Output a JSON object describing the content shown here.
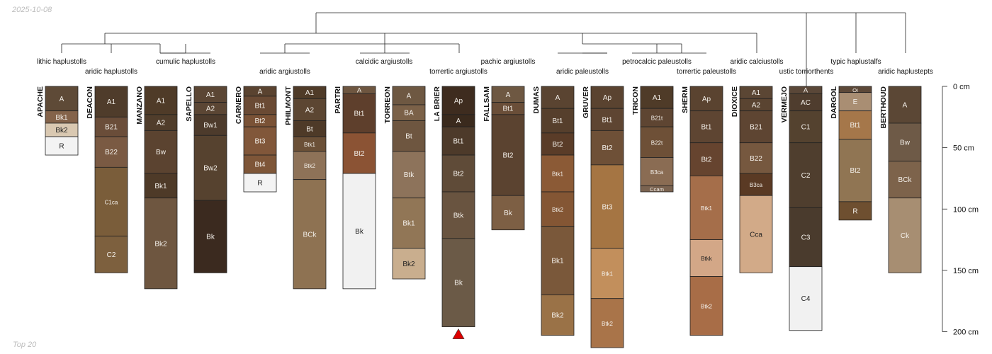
{
  "header": {
    "date": "2025-10-08"
  },
  "footer": {
    "caption": "Top 20"
  },
  "chart_data": {
    "type": "soil-profile-sketch",
    "title": "",
    "depth_axis": {
      "unit": "cm",
      "range": [
        0,
        200
      ],
      "ticks": [
        0,
        50,
        100,
        150,
        200
      ],
      "tick_labels": [
        "0 cm",
        "50 cm",
        "100 cm",
        "150 cm",
        "200 cm"
      ],
      "position": "right"
    },
    "profiles": [
      {
        "name": "APACHE",
        "horizons": [
          {
            "name": "A",
            "top": 0,
            "bottom": 20,
            "color": "#5e4a37"
          },
          {
            "name": "Bk1",
            "top": 20,
            "bottom": 30,
            "color": "#84634a"
          },
          {
            "name": "Bk2",
            "top": 30,
            "bottom": 41,
            "color": "#d9c8b1"
          },
          {
            "name": "R",
            "top": 41,
            "bottom": 56,
            "color": "#f3f3f3"
          }
        ]
      },
      {
        "name": "DEACON",
        "horizons": [
          {
            "name": "A1",
            "top": 0,
            "bottom": 25,
            "color": "#4f3c2b"
          },
          {
            "name": "B21",
            "top": 25,
            "bottom": 41,
            "color": "#6a4d39"
          },
          {
            "name": "B22",
            "top": 41,
            "bottom": 66,
            "color": "#7a5a43"
          },
          {
            "name": "C1ca",
            "top": 66,
            "bottom": 122,
            "color": "#7a5d3a"
          },
          {
            "name": "C2",
            "top": 122,
            "bottom": 152,
            "color": "#7d603e"
          }
        ]
      },
      {
        "name": "MANZANO",
        "horizons": [
          {
            "name": "A1",
            "top": 0,
            "bottom": 23,
            "color": "#4f3b28"
          },
          {
            "name": "A2",
            "top": 23,
            "bottom": 36,
            "color": "#503d2b"
          },
          {
            "name": "Bw",
            "top": 36,
            "bottom": 71,
            "color": "#5b4330"
          },
          {
            "name": "Bk1",
            "top": 71,
            "bottom": 91,
            "color": "#4e3a28"
          },
          {
            "name": "Bk2",
            "top": 91,
            "bottom": 165,
            "color": "#6e5640"
          }
        ]
      },
      {
        "name": "SAPELLO",
        "horizons": [
          {
            "name": "A1",
            "top": 0,
            "bottom": 13,
            "color": "#5b4634"
          },
          {
            "name": "A2",
            "top": 13,
            "bottom": 23,
            "color": "#5b4634"
          },
          {
            "name": "Bw1",
            "top": 23,
            "bottom": 40,
            "color": "#4d3b2c"
          },
          {
            "name": "Bw2",
            "top": 40,
            "bottom": 93,
            "color": "#56422f"
          },
          {
            "name": "Bk",
            "top": 93,
            "bottom": 152,
            "color": "#3b2a1f"
          }
        ]
      },
      {
        "name": "CARNERO",
        "horizons": [
          {
            "name": "A",
            "top": 0,
            "bottom": 8,
            "color": "#5a4330"
          },
          {
            "name": "Bt1",
            "top": 8,
            "bottom": 23,
            "color": "#6a4a34"
          },
          {
            "name": "Bt2",
            "top": 23,
            "bottom": 33,
            "color": "#7a5236"
          },
          {
            "name": "Bt3",
            "top": 33,
            "bottom": 56,
            "color": "#81573a"
          },
          {
            "name": "Bt4",
            "top": 56,
            "bottom": 71,
            "color": "#7e5638"
          },
          {
            "name": "R",
            "top": 71,
            "bottom": 86,
            "color": "#f3f3f3"
          }
        ]
      },
      {
        "name": "PHILMONT",
        "horizons": [
          {
            "name": "A1",
            "top": 0,
            "bottom": 10,
            "color": "#4f3b28"
          },
          {
            "name": "A2",
            "top": 10,
            "bottom": 28,
            "color": "#5c4632"
          },
          {
            "name": "Bt",
            "top": 28,
            "bottom": 41,
            "color": "#4e3a28"
          },
          {
            "name": "Btk1",
            "top": 41,
            "bottom": 53,
            "color": "#6b5037"
          },
          {
            "name": "Btk2",
            "top": 53,
            "bottom": 76,
            "color": "#8e7258"
          },
          {
            "name": "BCk",
            "top": 76,
            "bottom": 165,
            "color": "#8e7252"
          }
        ]
      },
      {
        "name": "PARTRI",
        "horizons": [
          {
            "name": "A",
            "top": 0,
            "bottom": 6,
            "color": "#6e5640"
          },
          {
            "name": "Bt1",
            "top": 6,
            "bottom": 38,
            "color": "#5e3f2c"
          },
          {
            "name": "Bt2",
            "top": 38,
            "bottom": 71,
            "color": "#8b5334"
          },
          {
            "name": "Bk",
            "top": 71,
            "bottom": 165,
            "color": "#f1f1f1"
          }
        ]
      },
      {
        "name": "TORREON",
        "horizons": [
          {
            "name": "A",
            "top": 0,
            "bottom": 15,
            "color": "#6e5842"
          },
          {
            "name": "BA",
            "top": 15,
            "bottom": 28,
            "color": "#7b6148"
          },
          {
            "name": "Bt",
            "top": 28,
            "bottom": 53,
            "color": "#6e5640"
          },
          {
            "name": "Btk",
            "top": 53,
            "bottom": 91,
            "color": "#8d735b"
          },
          {
            "name": "Bk1",
            "top": 91,
            "bottom": 132,
            "color": "#917656"
          },
          {
            "name": "Bk2",
            "top": 132,
            "bottom": 157,
            "color": "#c9ae8e"
          }
        ]
      },
      {
        "name": "LA BRIER",
        "horizons": [
          {
            "name": "Ap",
            "top": 0,
            "bottom": 23,
            "color": "#3e2c1f"
          },
          {
            "name": "A",
            "top": 23,
            "bottom": 33,
            "color": "#3a2a1d"
          },
          {
            "name": "Bt1",
            "top": 33,
            "bottom": 56,
            "color": "#4d3a2a"
          },
          {
            "name": "Bt2",
            "top": 56,
            "bottom": 86,
            "color": "#5f4b38"
          },
          {
            "name": "Btk",
            "top": 86,
            "bottom": 124,
            "color": "#695440"
          },
          {
            "name": "Bk",
            "top": 124,
            "bottom": 196,
            "color": "#6b5a47"
          }
        ]
      },
      {
        "name": "FALLSAM",
        "horizons": [
          {
            "name": "A",
            "top": 0,
            "bottom": 13,
            "color": "#6e5842"
          },
          {
            "name": "Bt1",
            "top": 13,
            "bottom": 23,
            "color": "#6a4e38"
          },
          {
            "name": "Bt2",
            "top": 23,
            "bottom": 89,
            "color": "#5b4330"
          },
          {
            "name": "Bk",
            "top": 89,
            "bottom": 117,
            "color": "#7d5f44"
          }
        ]
      },
      {
        "name": "DUMAS",
        "horizons": [
          {
            "name": "A",
            "top": 0,
            "bottom": 18,
            "color": "#5a4431"
          },
          {
            "name": "Bt1",
            "top": 18,
            "bottom": 38,
            "color": "#563f2c"
          },
          {
            "name": "Bt2",
            "top": 38,
            "bottom": 56,
            "color": "#5a3c28"
          },
          {
            "name": "Btk1",
            "top": 56,
            "bottom": 86,
            "color": "#8b5a36"
          },
          {
            "name": "Btk2",
            "top": 86,
            "bottom": 114,
            "color": "#845634"
          },
          {
            "name": "Bk1",
            "top": 114,
            "bottom": 170,
            "color": "#7a583a"
          },
          {
            "name": "Bk2",
            "top": 170,
            "bottom": 203,
            "color": "#9a7247"
          }
        ]
      },
      {
        "name": "GRUVER",
        "horizons": [
          {
            "name": "Ap",
            "top": 0,
            "bottom": 18,
            "color": "#5a4330"
          },
          {
            "name": "Bt1",
            "top": 18,
            "bottom": 36,
            "color": "#5e4532"
          },
          {
            "name": "Bt2",
            "top": 36,
            "bottom": 64,
            "color": "#6e5037"
          },
          {
            "name": "Bt3",
            "top": 64,
            "bottom": 132,
            "color": "#a57543"
          },
          {
            "name": "Btk1",
            "top": 132,
            "bottom": 173,
            "color": "#c28f5c"
          },
          {
            "name": "Btk2",
            "top": 173,
            "bottom": 213,
            "color": "#a97449"
          }
        ]
      },
      {
        "name": "TRICON",
        "horizons": [
          {
            "name": "A1",
            "top": 0,
            "bottom": 18,
            "color": "#4f3b28"
          },
          {
            "name": "B21t",
            "top": 18,
            "bottom": 33,
            "color": "#5e4532"
          },
          {
            "name": "B22t",
            "top": 33,
            "bottom": 58,
            "color": "#6e5037"
          },
          {
            "name": "B3ca",
            "top": 58,
            "bottom": 81,
            "color": "#8a6c53"
          },
          {
            "name": "Ccam",
            "top": 81,
            "bottom": 86,
            "color": "#7a6350"
          }
        ]
      },
      {
        "name": "SHERM",
        "horizons": [
          {
            "name": "Ap",
            "top": 0,
            "bottom": 20,
            "color": "#5a4330"
          },
          {
            "name": "Bt1",
            "top": 20,
            "bottom": 46,
            "color": "#5e4532"
          },
          {
            "name": "Bt2",
            "top": 46,
            "bottom": 73,
            "color": "#66442f"
          },
          {
            "name": "Btk1",
            "top": 73,
            "bottom": 125,
            "color": "#a56e4a"
          },
          {
            "name": "Btkk",
            "top": 125,
            "bottom": 155,
            "color": "#d3a787"
          },
          {
            "name": "Btk2",
            "top": 155,
            "bottom": 203,
            "color": "#a86d47"
          }
        ]
      },
      {
        "name": "DIOXICE",
        "horizons": [
          {
            "name": "A1",
            "top": 0,
            "bottom": 10,
            "color": "#5b4634"
          },
          {
            "name": "A2",
            "top": 10,
            "bottom": 20,
            "color": "#5a4431"
          },
          {
            "name": "B21",
            "top": 20,
            "bottom": 46,
            "color": "#5e4532"
          },
          {
            "name": "B22",
            "top": 46,
            "bottom": 71,
            "color": "#76583f"
          },
          {
            "name": "B3ca",
            "top": 71,
            "bottom": 89,
            "color": "#5a3a24"
          },
          {
            "name": "Cca",
            "top": 89,
            "bottom": 152,
            "color": "#d2aa88"
          }
        ]
      },
      {
        "name": "VERMEJO",
        "horizons": [
          {
            "name": "A",
            "top": 0,
            "bottom": 6,
            "color": "#5a4738"
          },
          {
            "name": "AC",
            "top": 6,
            "bottom": 20,
            "color": "#4f3d2e"
          },
          {
            "name": "C1",
            "top": 20,
            "bottom": 46,
            "color": "#54422f"
          },
          {
            "name": "C2",
            "top": 46,
            "bottom": 99,
            "color": "#4f3e2e"
          },
          {
            "name": "C3",
            "top": 99,
            "bottom": 147,
            "color": "#4a3b2d"
          },
          {
            "name": "C4",
            "top": 147,
            "bottom": 199,
            "color": "#f1f1f1"
          }
        ]
      },
      {
        "name": "DARGOL",
        "horizons": [
          {
            "name": "Oi",
            "top": 0,
            "bottom": 5,
            "color": "#5c4838"
          },
          {
            "name": "E",
            "top": 5,
            "bottom": 20,
            "color": "#a98e73"
          },
          {
            "name": "Bt1",
            "top": 20,
            "bottom": 43,
            "color": "#a5774a"
          },
          {
            "name": "Bt2",
            "top": 43,
            "bottom": 94,
            "color": "#907553"
          },
          {
            "name": "R",
            "top": 94,
            "bottom": 109,
            "color": "#6e4f30"
          }
        ]
      },
      {
        "name": "BERTHOUD",
        "horizons": [
          {
            "name": "A",
            "top": 0,
            "bottom": 30,
            "color": "#5b4735"
          },
          {
            "name": "Bw",
            "top": 30,
            "bottom": 61,
            "color": "#6e5a47"
          },
          {
            "name": "BCk",
            "top": 61,
            "bottom": 91,
            "color": "#7d634b"
          },
          {
            "name": "Ck",
            "top": 91,
            "bottom": 152,
            "color": "#a78e72"
          }
        ]
      }
    ],
    "truncated_profiles": [
      "LA BRIER"
    ],
    "dendrogram_leaves": [
      "lithic haplustolls",
      "aridic haplustolls",
      "cumulic haplustolls",
      "aridic argiustolls",
      "calcidic argiustolls",
      "torrertic argiustolls",
      "pachic argiustolls",
      "aridic paleustolls",
      "petrocalcic paleustolls",
      "torrertic paleustolls",
      "aridic calciustolls",
      "ustic torriorthents",
      "typic haplustalfs",
      "aridic haplustepts"
    ],
    "annotation_color": "#dd0000"
  }
}
